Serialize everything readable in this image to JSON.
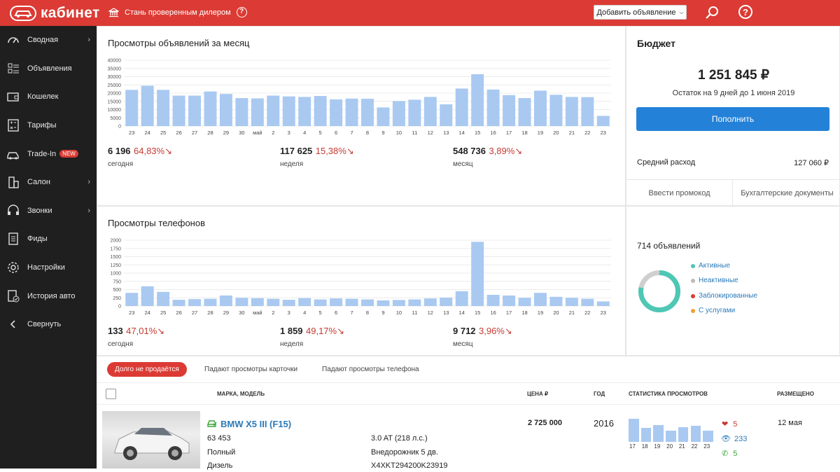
{
  "topbar": {
    "brand": "кабинет",
    "dealer_text": "Стань проверенным дилером",
    "dealer_help": "?",
    "add_button": "Добавить объявление",
    "help": "?"
  },
  "sidebar": {
    "items": [
      {
        "label": "Сводная",
        "icon": "dashboard-gauge-icon",
        "chevron": true
      },
      {
        "label": "Объявления",
        "icon": "listings-icon",
        "chevron": false
      },
      {
        "label": "Кошелек",
        "icon": "wallet-icon",
        "chevron": false
      },
      {
        "label": "Тарифы",
        "icon": "tariffs-calculator-icon",
        "chevron": false
      },
      {
        "label": "Trade-In",
        "icon": "car-icon",
        "chevron": false,
        "badge": "NEW"
      },
      {
        "label": "Салон",
        "icon": "building-icon",
        "chevron": true
      },
      {
        "label": "Звонки",
        "icon": "headset-icon",
        "chevron": true
      },
      {
        "label": "Фиды",
        "icon": "document-icon",
        "chevron": false
      },
      {
        "label": "Настройки",
        "icon": "gear-icon",
        "chevron": false
      },
      {
        "label": "История авто",
        "icon": "history-check-icon",
        "chevron": false
      },
      {
        "label": "Свернуть",
        "icon": "chevron-left-icon",
        "chevron": false
      }
    ]
  },
  "views_panel": {
    "title": "Просмотры объявлений за месяц",
    "stats": [
      {
        "value": "6 196",
        "pct": "64,83%↘",
        "label": "сегодня"
      },
      {
        "value": "117 625",
        "pct": "15,38%↘",
        "label": "неделя"
      },
      {
        "value": "548 736",
        "pct": "3,89%↘",
        "label": "месяц"
      }
    ]
  },
  "phone_panel": {
    "title": "Просмотры телефонов",
    "stats": [
      {
        "value": "133",
        "pct": "47,01%↘",
        "label": "сегодня"
      },
      {
        "value": "1 859",
        "pct": "49,17%↘",
        "label": "неделя"
      },
      {
        "value": "9 712",
        "pct": "3,96%↘",
        "label": "месяц"
      }
    ]
  },
  "chart_data": [
    {
      "type": "bar",
      "title": "Просмотры объявлений за месяц",
      "ylim": [
        0,
        40000
      ],
      "yticks": [
        "40000",
        "35000",
        "30000",
        "25000",
        "20000",
        "15000",
        "10000",
        "5000",
        "0"
      ],
      "categories": [
        "23",
        "24",
        "25",
        "26",
        "27",
        "28",
        "29",
        "30",
        "май",
        "2",
        "3",
        "4",
        "5",
        "6",
        "7",
        "8",
        "9",
        "10",
        "11",
        "12",
        "13",
        "14",
        "15",
        "16",
        "17",
        "18",
        "19",
        "20",
        "21",
        "22",
        "23"
      ],
      "values": [
        22000,
        24500,
        22000,
        18500,
        18500,
        21000,
        19500,
        17000,
        16800,
        18500,
        18000,
        17700,
        18300,
        16200,
        16700,
        16600,
        11300,
        15200,
        16000,
        17700,
        13200,
        22800,
        31500,
        22200,
        18800,
        17000,
        21500,
        19000,
        17700,
        17600,
        6200
      ]
    },
    {
      "type": "bar",
      "title": "Просмотры телефонов",
      "ylim": [
        0,
        2000
      ],
      "yticks": [
        "2000",
        "1750",
        "1500",
        "1250",
        "1000",
        "750",
        "500",
        "250",
        "0"
      ],
      "categories": [
        "23",
        "24",
        "25",
        "26",
        "27",
        "28",
        "29",
        "30",
        "май",
        "2",
        "3",
        "4",
        "5",
        "6",
        "7",
        "8",
        "9",
        "10",
        "11",
        "12",
        "13",
        "14",
        "15",
        "16",
        "17",
        "18",
        "19",
        "20",
        "21",
        "22",
        "23"
      ],
      "values": [
        400,
        600,
        430,
        190,
        210,
        220,
        320,
        250,
        240,
        220,
        190,
        240,
        200,
        230,
        220,
        200,
        170,
        185,
        200,
        230,
        255,
        450,
        1950,
        340,
        320,
        250,
        400,
        280,
        250,
        220,
        140
      ]
    },
    {
      "type": "pie",
      "title": "714 объявлений",
      "categories": [
        "Активные",
        "Неактивные",
        "Заблокированные",
        "С услугами"
      ],
      "values": [
        78,
        22,
        0,
        0
      ],
      "colors": [
        "#4ec7b5",
        "#cfcfcf",
        "#db3b34",
        "#f0a030"
      ]
    },
    {
      "type": "bar",
      "title": "",
      "categories": [
        "17",
        "18",
        "19",
        "20",
        "21",
        "22",
        "23"
      ],
      "values": [
        100,
        60,
        74,
        50,
        63,
        70,
        48
      ]
    }
  ],
  "budget": {
    "title": "Бюджет",
    "amount": "1 251 845 ₽",
    "remaining": "Остаток на 9 дней до 1 июня 2019",
    "topup": "Пополнить",
    "avg_label": "Средний расход",
    "avg_value": "127 060 ₽",
    "promo": "Ввести промокод",
    "docs": "Бухгалтерские документы"
  },
  "ads_summary": {
    "count": "714 объявлений",
    "legend": [
      {
        "label": "Активные",
        "color": "#4ec7b5"
      },
      {
        "label": "Неактивные",
        "color": "#bbbbbb"
      },
      {
        "label": "Заблокированные",
        "color": "#db3b34"
      },
      {
        "label": "С услугами",
        "color": "#f0a030"
      }
    ]
  },
  "tabs": [
    "Долго не продаётся",
    "Падают просмотры карточки",
    "Падают просмотры телефона"
  ],
  "table": {
    "headers": {
      "model": "МАРКА, МОДЕЛЬ",
      "price": "ЦЕНА ₽",
      "year": "ГОД",
      "stats": "СТАТИСТИКА ПРОСМОТРОВ",
      "placed": "РАЗМЕЩЕНО"
    },
    "row": {
      "title": "BMW X5 III (F15)",
      "mileage": "63 453",
      "drive": "Полный",
      "fuel": "Дизель",
      "engine": "3.0 AT (218 л.с.)",
      "body": "Внедорожник 5 дв.",
      "vin": "X4XKT294200K23919",
      "price": "2 725 000",
      "year": "2016",
      "likes": "5",
      "views": "233",
      "calls": "5",
      "placed": "12 мая"
    }
  }
}
